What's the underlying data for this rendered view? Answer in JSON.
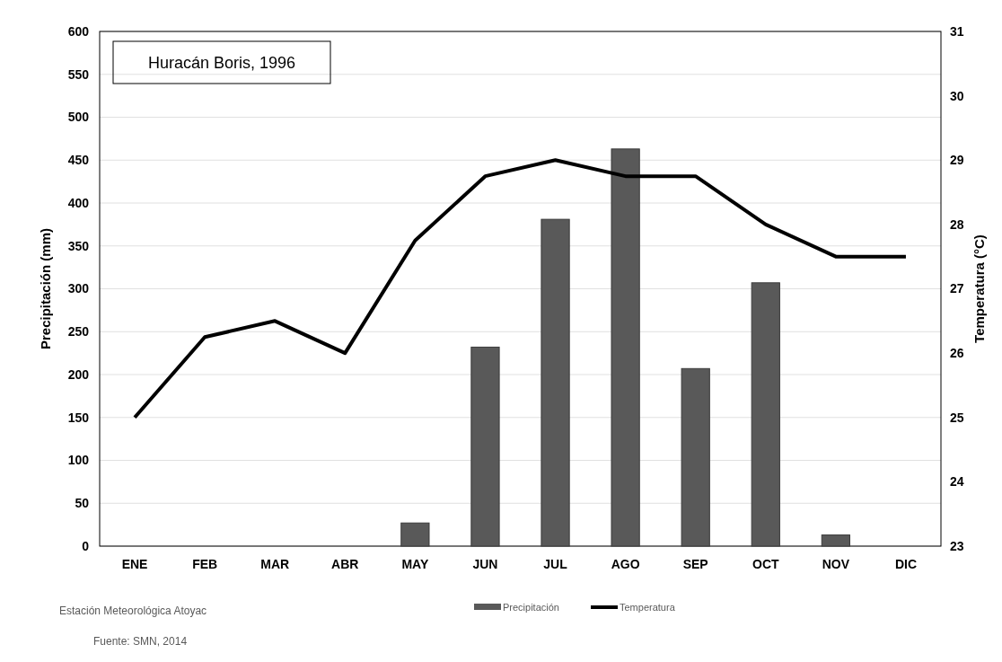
{
  "chart_data": {
    "type": "bar",
    "title": "Huracán Boris, 1996",
    "ylabel": "Precipitación (mm)",
    "y2label": "Temperatura (°C)",
    "categories": [
      "ENE",
      "FEB",
      "MAR",
      "ABR",
      "MAY",
      "JUN",
      "JUL",
      "AGO",
      "SEP",
      "OCT",
      "NOV",
      "DIC"
    ],
    "series": [
      {
        "name": "Precipitación",
        "color": "#595959",
        "values": [
          null,
          null,
          null,
          null,
          27,
          232,
          381,
          463,
          207,
          307,
          13,
          null
        ]
      },
      {
        "name": "Temperatura",
        "type": "line",
        "axis": "y2",
        "color": "#000000",
        "values": [
          25,
          26.25,
          26.5,
          26,
          27.75,
          28.75,
          29,
          28.75,
          28.75,
          28,
          27.5,
          27.5
        ]
      }
    ],
    "ylim": [
      0,
      600
    ],
    "yticks": [
      0,
      50,
      100,
      150,
      200,
      250,
      300,
      350,
      400,
      450,
      500,
      550,
      600
    ],
    "y2lim": [
      23,
      31
    ],
    "y2ticks": [
      23,
      24,
      25,
      26,
      27,
      28,
      29,
      30,
      31
    ],
    "grid": "y",
    "legend": "bottom",
    "marker": "none",
    "line_style": "solid",
    "annotations": [
      "Estación Meteorológica Atoyac",
      "Fuente: SMN, 2014"
    ]
  }
}
